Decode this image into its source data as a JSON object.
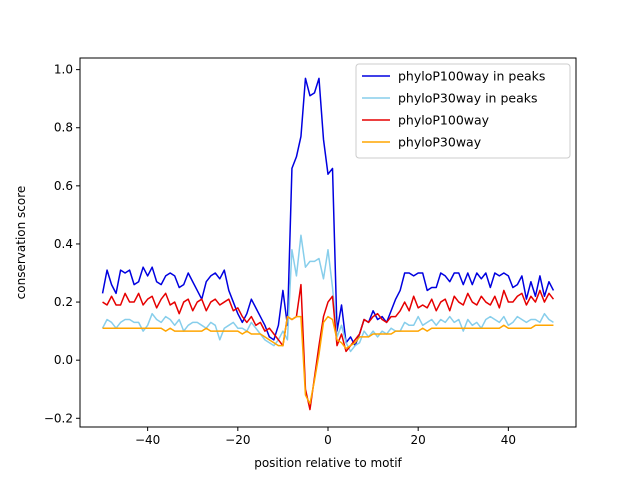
{
  "chart_data": {
    "type": "line",
    "title": "",
    "xlabel": "position relative to motif",
    "ylabel": "conservation score",
    "xlim": [
      -55,
      55
    ],
    "ylim": [
      -0.23,
      1.04
    ],
    "xticks": [
      -40,
      -20,
      0,
      20,
      40
    ],
    "yticks": [
      -0.2,
      0.0,
      0.2,
      0.4,
      0.6,
      0.8,
      1.0
    ],
    "xtick_labels": [
      "−40",
      "−20",
      "0",
      "20",
      "40"
    ],
    "ytick_labels": [
      "−0.2",
      "0.0",
      "0.2",
      "0.4",
      "0.6",
      "0.8",
      "1.0"
    ],
    "grid": false,
    "legend_position": "top-right",
    "x": [
      -50,
      -49,
      -48,
      -47,
      -46,
      -45,
      -44,
      -43,
      -42,
      -41,
      -40,
      -39,
      -38,
      -37,
      -36,
      -35,
      -34,
      -33,
      -32,
      -31,
      -30,
      -29,
      -28,
      -27,
      -26,
      -25,
      -24,
      -23,
      -22,
      -21,
      -20,
      -19,
      -18,
      -17,
      -16,
      -15,
      -14,
      -13,
      -12,
      -11,
      -10,
      -9,
      -8,
      -7,
      -6,
      -5,
      -4,
      -3,
      -2,
      -1,
      0,
      1,
      2,
      3,
      4,
      5,
      6,
      7,
      8,
      9,
      10,
      11,
      12,
      13,
      14,
      15,
      16,
      17,
      18,
      19,
      20,
      21,
      22,
      23,
      24,
      25,
      26,
      27,
      28,
      29,
      30,
      31,
      32,
      33,
      34,
      35,
      36,
      37,
      38,
      39,
      40,
      41,
      42,
      43,
      44,
      45,
      46,
      47,
      48,
      49,
      50
    ],
    "series": [
      {
        "name": "phyloP100way in peaks",
        "color": "#0000e0",
        "values": [
          0.23,
          0.31,
          0.26,
          0.23,
          0.31,
          0.3,
          0.31,
          0.26,
          0.27,
          0.32,
          0.29,
          0.32,
          0.27,
          0.26,
          0.29,
          0.3,
          0.29,
          0.25,
          0.26,
          0.3,
          0.27,
          0.24,
          0.21,
          0.27,
          0.29,
          0.3,
          0.28,
          0.31,
          0.24,
          0.2,
          0.16,
          0.13,
          0.16,
          0.21,
          0.18,
          0.15,
          0.12,
          0.08,
          0.07,
          0.12,
          0.24,
          0.12,
          0.66,
          0.7,
          0.77,
          0.97,
          0.91,
          0.92,
          0.97,
          0.76,
          0.64,
          0.66,
          0.1,
          0.19,
          0.06,
          0.08,
          0.05,
          0.09,
          0.14,
          0.13,
          0.17,
          0.14,
          0.15,
          0.13,
          0.17,
          0.21,
          0.24,
          0.3,
          0.3,
          0.29,
          0.3,
          0.3,
          0.24,
          0.25,
          0.25,
          0.3,
          0.29,
          0.27,
          0.3,
          0.3,
          0.26,
          0.3,
          0.26,
          0.3,
          0.28,
          0.3,
          0.25,
          0.3,
          0.29,
          0.3,
          0.29,
          0.25,
          0.26,
          0.29,
          0.21,
          0.27,
          0.22,
          0.29,
          0.22,
          0.27,
          0.24
        ]
      },
      {
        "name": "phyloP30way in peaks",
        "color": "#87ceeb",
        "values": [
          0.11,
          0.14,
          0.13,
          0.11,
          0.13,
          0.14,
          0.14,
          0.13,
          0.13,
          0.1,
          0.12,
          0.16,
          0.14,
          0.13,
          0.15,
          0.14,
          0.12,
          0.14,
          0.1,
          0.12,
          0.13,
          0.13,
          0.12,
          0.11,
          0.13,
          0.12,
          0.07,
          0.11,
          0.12,
          0.13,
          0.11,
          0.11,
          0.1,
          0.13,
          0.11,
          0.09,
          0.07,
          0.06,
          0.05,
          0.07,
          0.1,
          0.07,
          0.38,
          0.29,
          0.43,
          0.32,
          0.34,
          0.34,
          0.35,
          0.28,
          0.38,
          0.25,
          0.08,
          0.12,
          0.06,
          0.03,
          0.05,
          0.06,
          0.1,
          0.08,
          0.1,
          0.08,
          0.1,
          0.09,
          0.11,
          0.1,
          0.1,
          0.13,
          0.12,
          0.12,
          0.15,
          0.12,
          0.13,
          0.14,
          0.12,
          0.14,
          0.13,
          0.15,
          0.13,
          0.14,
          0.1,
          0.14,
          0.12,
          0.13,
          0.11,
          0.14,
          0.15,
          0.14,
          0.13,
          0.15,
          0.12,
          0.13,
          0.15,
          0.14,
          0.13,
          0.14,
          0.14,
          0.13,
          0.16,
          0.14,
          0.13
        ]
      },
      {
        "name": "phyloP100way",
        "color": "#e60000",
        "values": [
          0.2,
          0.19,
          0.22,
          0.19,
          0.19,
          0.23,
          0.2,
          0.2,
          0.23,
          0.19,
          0.21,
          0.22,
          0.18,
          0.21,
          0.23,
          0.19,
          0.2,
          0.16,
          0.2,
          0.21,
          0.17,
          0.2,
          0.21,
          0.17,
          0.2,
          0.21,
          0.19,
          0.2,
          0.21,
          0.17,
          0.18,
          0.15,
          0.13,
          0.15,
          0.12,
          0.13,
          0.1,
          0.11,
          0.09,
          0.07,
          0.05,
          0.15,
          0.14,
          0.15,
          0.26,
          -0.1,
          -0.17,
          -0.06,
          0.05,
          0.15,
          0.2,
          0.22,
          0.05,
          0.09,
          0.03,
          0.05,
          0.07,
          0.09,
          0.14,
          0.13,
          0.15,
          0.16,
          0.14,
          0.13,
          0.15,
          0.15,
          0.17,
          0.2,
          0.17,
          0.22,
          0.18,
          0.19,
          0.18,
          0.21,
          0.17,
          0.2,
          0.21,
          0.17,
          0.22,
          0.2,
          0.19,
          0.23,
          0.2,
          0.19,
          0.22,
          0.2,
          0.19,
          0.22,
          0.18,
          0.24,
          0.2,
          0.2,
          0.22,
          0.23,
          0.19,
          0.22,
          0.2,
          0.24,
          0.2,
          0.23,
          0.21
        ]
      },
      {
        "name": "phyloP30way",
        "color": "#ffa500",
        "values": [
          0.11,
          0.11,
          0.11,
          0.11,
          0.11,
          0.11,
          0.11,
          0.11,
          0.11,
          0.11,
          0.11,
          0.11,
          0.11,
          0.11,
          0.1,
          0.11,
          0.1,
          0.1,
          0.1,
          0.1,
          0.1,
          0.1,
          0.1,
          0.11,
          0.1,
          0.1,
          0.1,
          0.1,
          0.1,
          0.1,
          0.1,
          0.09,
          0.1,
          0.09,
          0.09,
          0.09,
          0.08,
          0.07,
          0.06,
          0.05,
          0.05,
          0.15,
          0.14,
          0.15,
          0.15,
          -0.12,
          -0.15,
          -0.07,
          0.02,
          0.13,
          0.15,
          0.14,
          0.07,
          0.06,
          0.04,
          0.05,
          0.06,
          0.08,
          0.08,
          0.08,
          0.09,
          0.09,
          0.09,
          0.09,
          0.09,
          0.1,
          0.1,
          0.1,
          0.1,
          0.1,
          0.1,
          0.11,
          0.1,
          0.11,
          0.11,
          0.11,
          0.11,
          0.11,
          0.11,
          0.11,
          0.11,
          0.11,
          0.11,
          0.11,
          0.11,
          0.11,
          0.11,
          0.11,
          0.11,
          0.12,
          0.11,
          0.11,
          0.11,
          0.11,
          0.11,
          0.11,
          0.12,
          0.12,
          0.12,
          0.12,
          0.12
        ]
      }
    ]
  }
}
